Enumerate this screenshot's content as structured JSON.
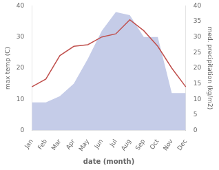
{
  "chart_data": {
    "type": "line",
    "xlabel": "date (month)",
    "ylabel": "max temp (C)",
    "y2label": "med. precipitation (kg/m2)",
    "categories": [
      "Jan",
      "Feb",
      "Mar",
      "Apr",
      "May",
      "Jun",
      "Jul",
      "Aug",
      "Sep",
      "Oct",
      "Nov",
      "Dec"
    ],
    "series": [
      {
        "type": "area",
        "color": "#c5cce8",
        "axis": "y2",
        "values": [
          9,
          9,
          11,
          15,
          23,
          32,
          38,
          37,
          30,
          30,
          12,
          12
        ]
      },
      {
        "type": "line",
        "color": "#c0504d",
        "values": [
          14,
          16.5,
          24,
          27,
          27.5,
          30,
          31,
          35.5,
          32,
          27,
          20,
          14
        ]
      }
    ],
    "ylim": [
      0,
      40
    ],
    "yticks": [
      0,
      10,
      20,
      30,
      40
    ],
    "y2lim": [
      0,
      40
    ],
    "y2ticks": [
      0,
      5,
      10,
      15,
      20,
      25,
      30,
      35,
      40
    ],
    "grid": false
  }
}
